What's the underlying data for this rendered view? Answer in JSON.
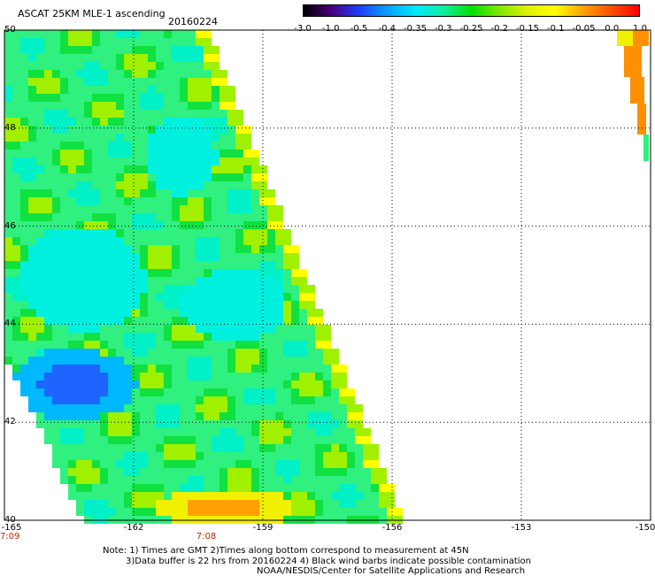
{
  "title": "ASCAT 25KM MLE-1 ascending",
  "date": "20160224",
  "colorbar": {
    "labels": [
      "-3.0",
      "-1.0",
      "-0.5",
      "-0.4",
      "-0.35",
      "-0.3",
      "-0.25",
      "-0.2",
      "-0.15",
      "-0.1",
      "-0.05",
      "0.0",
      "1.0"
    ],
    "colors": [
      "#000000",
      "#4a0080",
      "#1e40ff",
      "#0aa0ff",
      "#00e8ff",
      "#10f0a0",
      "#00e000",
      "#80e800",
      "#e0f000",
      "#ffff00",
      "#ffa000",
      "#ff5000",
      "#ff0000"
    ]
  },
  "map": {
    "lon_range": [
      -165,
      -150
    ],
    "lat_range": [
      40,
      50
    ],
    "lat_labels": [
      "50",
      "48",
      "46",
      "44",
      "42",
      "40"
    ],
    "lon_labels": [
      "-165",
      "-162",
      "-159",
      "-156",
      "-153",
      "-150"
    ],
    "times": [
      {
        "label": "7:09",
        "lon": -165
      },
      {
        "label": "7:08",
        "lon": -160.3
      }
    ]
  },
  "notes": [
    "Note: 1) Times are GMT 2)Times along bottom correspond to measurement at 45N",
    "3)Data buffer is 22 hrs from 20160224 4) Black wind barbs indicate possible contamination",
    "NOAA/NESDIS/Center for Satellite Applications and Research"
  ]
}
